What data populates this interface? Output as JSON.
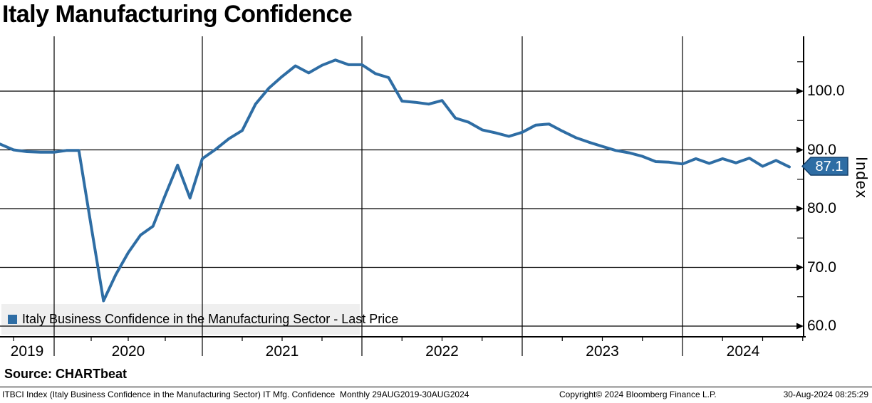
{
  "title": "Italy Manufacturing Confidence",
  "legend": {
    "label": "Italy Business Confidence in the Manufacturing Sector - Last Price"
  },
  "y_axis": {
    "title": "Index",
    "last_price_badge": "87.1"
  },
  "source": {
    "text": "Source: CHARTbeat"
  },
  "footer": {
    "left": "ITBCI Index (Italy Business Confidence in the Manufacturing Sector) IT Mfg. Confidence  Monthly 29AUG2019-30AUG2024",
    "copyright": "Copyright© 2024 Bloomberg Finance L.P.",
    "timestamp": "30-Aug-2024 08:25:29"
  },
  "colors": {
    "line": "#2e6da4",
    "badge_bg": "#2e6da4",
    "badge_border": "#15406a",
    "badge_text": "#ffffff",
    "grid": "#000000",
    "legend_bg": "#efefef"
  },
  "chart_data": {
    "type": "line",
    "title": "Italy Manufacturing Confidence",
    "xlabel": "",
    "ylabel": "Index",
    "frequency": "Monthly",
    "date_range": "29AUG2019-30AUG2024",
    "grid": true,
    "legend_position": "bottom-left",
    "y_ticks": [
      100,
      90,
      80,
      70,
      60
    ],
    "y_tick_labels": [
      "100.0",
      "90.0",
      "80.0",
      "70.0",
      "60.0"
    ],
    "y_minor_ticks": [
      105,
      95,
      85,
      75,
      65
    ],
    "ylim": [
      58,
      109
    ],
    "x_tick_labels": [
      "2019",
      "2020",
      "2021",
      "2022",
      "2023",
      "2024"
    ],
    "last_value": 87.1,
    "series": [
      {
        "name": "Italy Business Confidence in the Manufacturing Sector - Last Price",
        "color": "#2e6da4",
        "points": [
          [
            "2019-08",
            91.0
          ],
          [
            "2019-09",
            90.0
          ],
          [
            "2019-10",
            89.7
          ],
          [
            "2019-11",
            89.6
          ],
          [
            "2019-12",
            89.6
          ],
          [
            "2020-01",
            89.9
          ],
          [
            "2020-02",
            89.9
          ],
          [
            "2020-03",
            77.0
          ],
          [
            "2020-04",
            64.3
          ],
          [
            "2020-05",
            68.8
          ],
          [
            "2020-06",
            72.5
          ],
          [
            "2020-07",
            75.5
          ],
          [
            "2020-08",
            77.0
          ],
          [
            "2020-09",
            82.3
          ],
          [
            "2020-10",
            87.4
          ],
          [
            "2020-11",
            81.8
          ],
          [
            "2020-12",
            88.5
          ],
          [
            "2021-01",
            90.1
          ],
          [
            "2021-02",
            91.9
          ],
          [
            "2021-03",
            93.3
          ],
          [
            "2021-04",
            97.8
          ],
          [
            "2021-05",
            100.5
          ],
          [
            "2021-06",
            102.5
          ],
          [
            "2021-07",
            104.3
          ],
          [
            "2021-08",
            103.1
          ],
          [
            "2021-09",
            104.4
          ],
          [
            "2021-10",
            105.3
          ],
          [
            "2021-11",
            104.5
          ],
          [
            "2021-12",
            104.5
          ],
          [
            "2022-01",
            103.0
          ],
          [
            "2022-02",
            102.3
          ],
          [
            "2022-03",
            98.3
          ],
          [
            "2022-04",
            98.1
          ],
          [
            "2022-05",
            97.8
          ],
          [
            "2022-06",
            98.4
          ],
          [
            "2022-07",
            95.4
          ],
          [
            "2022-08",
            94.7
          ],
          [
            "2022-09",
            93.4
          ],
          [
            "2022-10",
            92.9
          ],
          [
            "2022-11",
            92.3
          ],
          [
            "2022-12",
            93.0
          ],
          [
            "2023-01",
            94.2
          ],
          [
            "2023-02",
            94.4
          ],
          [
            "2023-03",
            93.2
          ],
          [
            "2023-04",
            92.1
          ],
          [
            "2023-05",
            91.3
          ],
          [
            "2023-06",
            90.6
          ],
          [
            "2023-07",
            89.9
          ],
          [
            "2023-08",
            89.5
          ],
          [
            "2023-09",
            88.9
          ],
          [
            "2023-10",
            88.0
          ],
          [
            "2023-11",
            87.9
          ],
          [
            "2023-12",
            87.6
          ],
          [
            "2024-01",
            88.5
          ],
          [
            "2024-02",
            87.7
          ],
          [
            "2024-03",
            88.5
          ],
          [
            "2024-04",
            87.8
          ],
          [
            "2024-05",
            88.6
          ],
          [
            "2024-06",
            87.2
          ],
          [
            "2024-07",
            88.2
          ],
          [
            "2024-08",
            87.1
          ]
        ]
      }
    ]
  }
}
